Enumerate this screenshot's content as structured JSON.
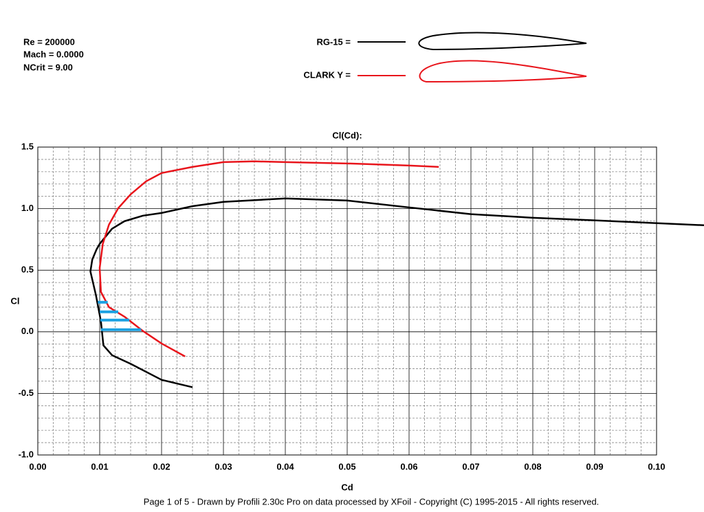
{
  "chart_data": {
    "type": "line",
    "title": "Cl(Cd):",
    "annotations": [
      "Re = 200000",
      "Mach = 0.0000",
      "NCrit = 9.00"
    ],
    "xlabel": "Cd",
    "ylabel": "Cl",
    "footer": "Page 1 of 5   -   Drawn by Profili 2.30c Pro on data processed by  XFoil - Copyright (C) 1995-2015 - All rights reserved.",
    "xlim": [
      0,
      0.1
    ],
    "ylim": [
      -1,
      1.5
    ],
    "xticks": [
      {
        "value": 0,
        "label": "0.00"
      },
      {
        "value": 0.01,
        "label": "0.01"
      },
      {
        "value": 0.02,
        "label": "0.02"
      },
      {
        "value": 0.03,
        "label": "0.03"
      },
      {
        "value": 0.04,
        "label": "0.04"
      },
      {
        "value": 0.05,
        "label": "0.05"
      },
      {
        "value": 0.06,
        "label": "0.06"
      },
      {
        "value": 0.07,
        "label": "0.07"
      },
      {
        "value": 0.08,
        "label": "0.08"
      },
      {
        "value": 0.09,
        "label": "0.09"
      },
      {
        "value": 0.1,
        "label": "0.10"
      }
    ],
    "yticks": [
      {
        "value": 1.5,
        "label": "1.5"
      },
      {
        "value": 1,
        "label": "1.0"
      },
      {
        "value": 0.5,
        "label": "0.5"
      },
      {
        "value": 0,
        "label": "0.0"
      },
      {
        "value": -0.5,
        "label": "-0.5"
      },
      {
        "value": -1,
        "label": "-1.0"
      }
    ],
    "grid": true,
    "minor_grid": true,
    "series": [
      {
        "name": "RG-15 =",
        "color": "#000000",
        "x": [
          0.1077,
          0.09,
          0.08,
          0.07,
          0.06,
          0.05,
          0.04,
          0.03,
          0.025,
          0.02,
          0.017,
          0.014,
          0.012,
          0.01,
          0.0095,
          0.0088,
          0.0085,
          0.0094,
          0.0102,
          0.0106,
          0.012,
          0.015,
          0.02,
          0.025
        ],
        "values": [
          0.865,
          0.905,
          0.926,
          0.955,
          1.01,
          1.066,
          1.083,
          1.055,
          1.02,
          0.965,
          0.943,
          0.898,
          0.837,
          0.714,
          0.67,
          0.586,
          0.49,
          0.296,
          0.084,
          -0.11,
          -0.19,
          -0.26,
          -0.39,
          -0.45
        ]
      },
      {
        "name": "CLARK Y =",
        "color": "#e8141b",
        "x": [
          0.0648,
          0.06,
          0.05,
          0.04,
          0.035,
          0.03,
          0.025,
          0.02,
          0.0175,
          0.015,
          0.013,
          0.0115,
          0.0105,
          0.01,
          0.0102,
          0.0115,
          0.014,
          0.017,
          0.02,
          0.0238
        ],
        "values": [
          1.339,
          1.35,
          1.367,
          1.378,
          1.384,
          1.378,
          1.339,
          1.289,
          1.222,
          1.116,
          1.004,
          0.87,
          0.714,
          0.519,
          0.324,
          0.2,
          0.123,
          0.006,
          -0.095,
          -0.2
        ]
      }
    ],
    "highlight": {
      "color": "#1ba1e2",
      "segments": [
        [
          0.0097,
          0.0113,
          0.24
        ],
        [
          0.01,
          0.013,
          0.162
        ],
        [
          0.0101,
          0.0148,
          0.095
        ],
        [
          0.0102,
          0.0167,
          0.017
        ]
      ]
    }
  }
}
